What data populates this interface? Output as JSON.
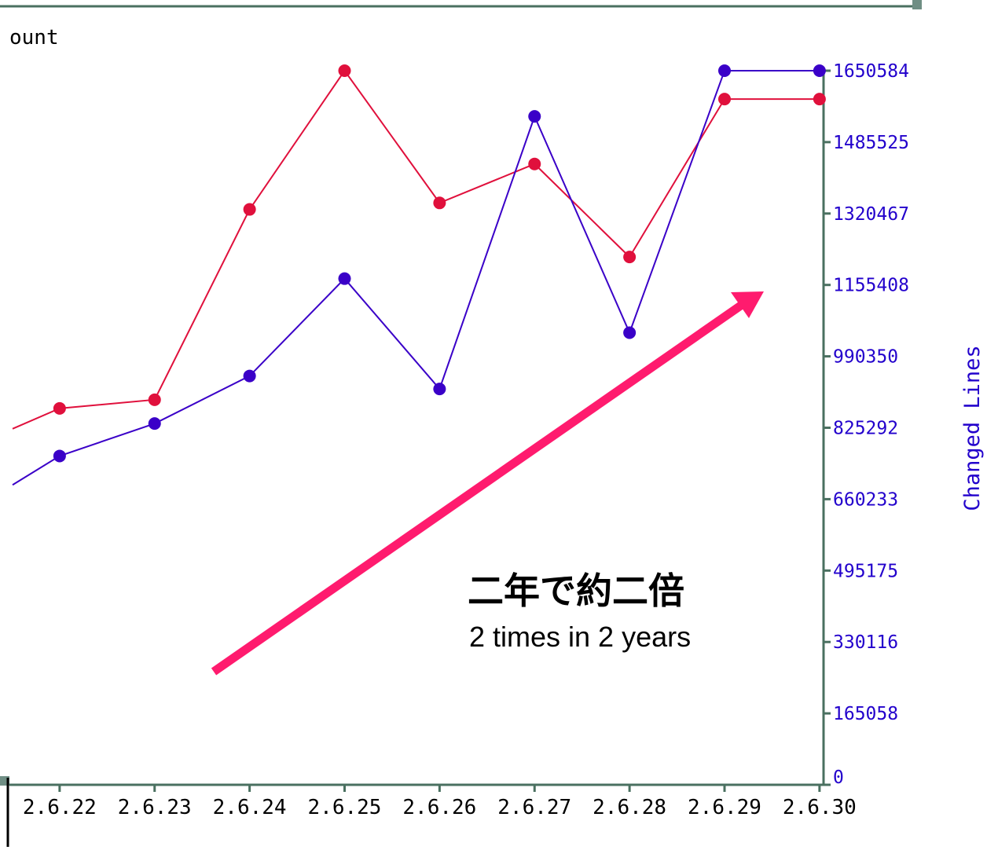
{
  "chart_data": {
    "type": "line",
    "categories": [
      "",
      "2.6.22",
      "2.6.23",
      "2.6.24",
      "2.6.25",
      "2.6.26",
      "2.6.27",
      "2.6.28",
      "2.6.29",
      "2.6.30"
    ],
    "left_axis_label_partial": "ount",
    "right_axis": {
      "label": "Changed Lines",
      "ticks": [
        0,
        165058,
        330116,
        495175,
        660233,
        825292,
        990350,
        1155408,
        1320467,
        1485525,
        1650584
      ],
      "ylim": [
        0,
        1650584
      ]
    },
    "series": [
      {
        "color": "#e0103c",
        "values": [
          775000,
          870000,
          890000,
          1330000,
          1650584,
          1345000,
          1435000,
          1220000,
          1585000,
          1585000
        ]
      },
      {
        "color": "#3a00c8",
        "values": [
          625000,
          760000,
          835000,
          945000,
          1170000,
          915000,
          1545000,
          1045000,
          1650584,
          1650584
        ]
      }
    ]
  },
  "annotation": {
    "title": "二年で約二倍",
    "subtitle": "2 times in 2 years",
    "arrow_color": "#ff1b6e"
  },
  "colors": {
    "axis": "#4a7060",
    "label": "#2200cc",
    "frame": "#4a7060"
  }
}
